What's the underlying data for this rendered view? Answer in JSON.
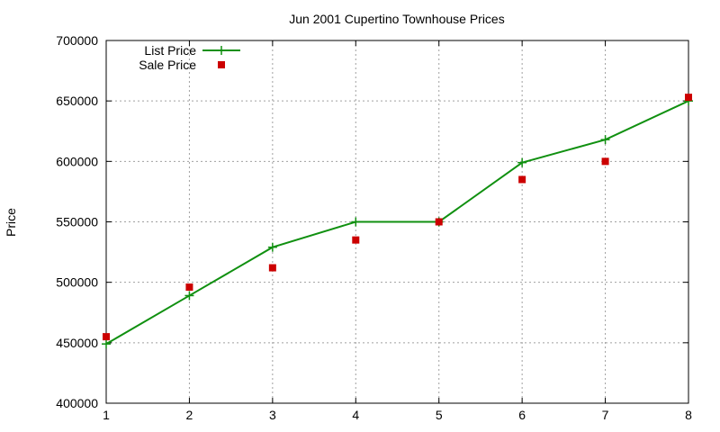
{
  "chart_data": {
    "type": "line",
    "title": "Jun 2001 Cupertino Townhouse Prices",
    "xlabel": "",
    "ylabel": "Price",
    "x": [
      1,
      2,
      3,
      4,
      5,
      6,
      7,
      8
    ],
    "xlim": [
      1,
      8
    ],
    "ylim": [
      400000,
      700000
    ],
    "x_ticks": [
      "1",
      "2",
      "3",
      "4",
      "5",
      "6",
      "7",
      "8"
    ],
    "y_ticks": [
      "400000",
      "450000",
      "500000",
      "550000",
      "600000",
      "650000",
      "700000"
    ],
    "grid": true,
    "legend_position": "top-left",
    "series": [
      {
        "name": "List Price",
        "style": "linespoints",
        "marker": "plus",
        "color": "#109010",
        "values": [
          449000,
          489000,
          529000,
          550000,
          550000,
          599000,
          618000,
          650000
        ]
      },
      {
        "name": "Sale Price",
        "style": "points",
        "marker": "square",
        "color": "#cc0000",
        "values": [
          455000,
          496000,
          512000,
          535000,
          550000,
          585000,
          600000,
          653000
        ]
      }
    ]
  }
}
